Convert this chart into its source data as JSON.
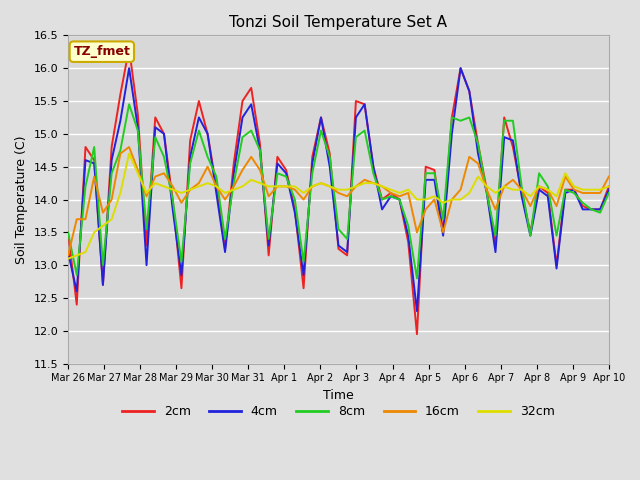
{
  "title": "Tonzi Soil Temperature Set A",
  "xlabel": "Time",
  "ylabel": "Soil Temperature (C)",
  "ylim": [
    11.5,
    16.5
  ],
  "fig_bg": "#e0e0e0",
  "plot_bg": "#d8d8d8",
  "annotation_text": "TZ_fmet",
  "annotation_bg": "#ffffcc",
  "annotation_border": "#ccaa00",
  "annotation_text_color": "#880000",
  "xtick_labels": [
    "Mar 26",
    "Mar 27",
    "Mar 28",
    "Mar 29",
    "Mar 30",
    "Mar 31",
    "Apr 1",
    "Apr 2",
    "Apr 3",
    "Apr 4",
    "Apr 5",
    "Apr 6",
    "Apr 7",
    "Apr 8",
    "Apr 9",
    "Apr 10"
  ],
  "series": {
    "2cm": {
      "color": "#ee2222",
      "lw": 1.4
    },
    "4cm": {
      "color": "#2222dd",
      "lw": 1.4
    },
    "8cm": {
      "color": "#22cc22",
      "lw": 1.4
    },
    "16cm": {
      "color": "#ee8800",
      "lw": 1.4
    },
    "32cm": {
      "color": "#dddd00",
      "lw": 1.4
    }
  },
  "legend_items": [
    {
      "label": "2cm",
      "color": "#ee2222"
    },
    {
      "label": "4cm",
      "color": "#2222dd"
    },
    {
      "label": "8cm",
      "color": "#22cc22"
    },
    {
      "label": "16cm",
      "color": "#ee8800"
    },
    {
      "label": "32cm",
      "color": "#dddd00"
    }
  ],
  "data_2cm": [
    13.5,
    12.4,
    14.8,
    14.6,
    12.7,
    14.8,
    15.6,
    16.3,
    15.3,
    13.3,
    15.25,
    15.0,
    14.0,
    12.65,
    14.9,
    15.5,
    15.0,
    14.2,
    13.25,
    14.55,
    15.5,
    15.7,
    14.85,
    13.15,
    14.65,
    14.45,
    13.85,
    12.65,
    14.65,
    15.25,
    14.7,
    13.25,
    13.15,
    15.5,
    15.45,
    14.5,
    14.0,
    14.1,
    14.0,
    13.35,
    11.95,
    14.5,
    14.45,
    13.5,
    15.25,
    16.0,
    15.65,
    14.85,
    14.15,
    13.3,
    15.25,
    14.8,
    14.1,
    13.5,
    14.2,
    14.1,
    13.0,
    14.15,
    14.15,
    13.9,
    13.85,
    13.85,
    14.2
  ],
  "data_4cm": [
    13.2,
    12.6,
    14.6,
    14.55,
    12.7,
    14.6,
    15.2,
    16.0,
    15.1,
    13.0,
    15.1,
    15.0,
    13.85,
    12.85,
    14.65,
    15.25,
    15.0,
    14.1,
    13.2,
    14.4,
    15.25,
    15.45,
    14.75,
    13.3,
    14.55,
    14.4,
    13.8,
    12.85,
    14.55,
    15.25,
    14.5,
    13.3,
    13.2,
    15.25,
    15.45,
    14.5,
    13.85,
    14.05,
    14.0,
    13.45,
    12.3,
    14.3,
    14.3,
    13.45,
    15.0,
    16.0,
    15.65,
    14.7,
    14.1,
    13.2,
    14.95,
    14.9,
    14.05,
    13.45,
    14.15,
    14.05,
    12.95,
    14.1,
    14.15,
    13.85,
    13.85,
    13.85,
    14.15
  ],
  "data_8cm": [
    13.5,
    12.85,
    14.2,
    14.8,
    13.0,
    14.4,
    14.75,
    15.45,
    15.05,
    13.55,
    14.95,
    14.65,
    14.0,
    13.05,
    14.55,
    15.05,
    14.65,
    14.35,
    13.4,
    14.25,
    14.95,
    15.05,
    14.75,
    13.4,
    14.4,
    14.35,
    14.0,
    13.05,
    14.4,
    15.05,
    14.65,
    13.55,
    13.4,
    14.95,
    15.05,
    14.4,
    14.0,
    14.05,
    14.0,
    13.6,
    12.8,
    14.4,
    14.4,
    13.7,
    15.25,
    15.2,
    15.25,
    14.85,
    14.1,
    13.45,
    15.2,
    15.2,
    14.2,
    13.45,
    14.4,
    14.2,
    13.45,
    14.15,
    14.1,
    13.95,
    13.85,
    13.8,
    14.1
  ],
  "data_16cm": [
    13.15,
    13.7,
    13.7,
    14.35,
    13.8,
    14.0,
    14.7,
    14.8,
    14.45,
    14.05,
    14.35,
    14.4,
    14.2,
    13.95,
    14.15,
    14.25,
    14.5,
    14.2,
    14.0,
    14.2,
    14.45,
    14.65,
    14.45,
    14.05,
    14.2,
    14.2,
    14.15,
    14.0,
    14.2,
    14.25,
    14.2,
    14.1,
    14.05,
    14.2,
    14.3,
    14.25,
    14.2,
    14.1,
    14.05,
    14.1,
    13.5,
    13.85,
    14.0,
    13.5,
    14.0,
    14.15,
    14.65,
    14.55,
    14.15,
    13.85,
    14.2,
    14.3,
    14.15,
    13.9,
    14.2,
    14.15,
    13.9,
    14.35,
    14.15,
    14.1,
    14.1,
    14.1,
    14.35
  ],
  "data_32cm": [
    13.1,
    13.15,
    13.2,
    13.5,
    13.6,
    13.7,
    14.1,
    14.7,
    14.4,
    14.1,
    14.25,
    14.2,
    14.15,
    14.1,
    14.15,
    14.2,
    14.25,
    14.2,
    14.1,
    14.15,
    14.2,
    14.3,
    14.25,
    14.2,
    14.2,
    14.2,
    14.2,
    14.1,
    14.2,
    14.25,
    14.2,
    14.15,
    14.15,
    14.2,
    14.25,
    14.25,
    14.2,
    14.15,
    14.1,
    14.15,
    14.0,
    14.0,
    14.05,
    13.95,
    14.0,
    14.0,
    14.1,
    14.35,
    14.2,
    14.1,
    14.2,
    14.15,
    14.15,
    14.05,
    14.2,
    14.15,
    14.05,
    14.4,
    14.2,
    14.15,
    14.15,
    14.15,
    14.2
  ]
}
